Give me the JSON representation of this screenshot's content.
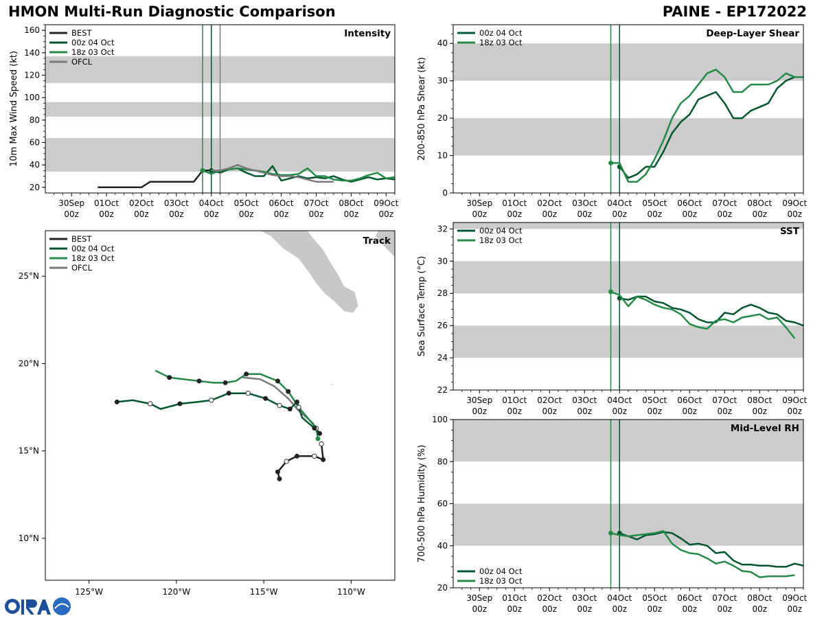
{
  "header": {
    "title": "HMON Multi-Run Diagnostic Comparison",
    "storm": "PAINE - EP172022"
  },
  "logo": {
    "text": "CIRA"
  },
  "colors": {
    "best": "#222222",
    "run00z": "#02552e",
    "run18z": "#24894a",
    "ofcl": "#7a7a7a",
    "band": "#cccccc",
    "land": "#c8c8c8"
  },
  "time_axis": {
    "ticks": [
      "30Sep\n00z",
      "01Oct\n00z",
      "02Oct\n00z",
      "03Oct\n00z",
      "04Oct\n00z",
      "05Oct\n00z",
      "06Oct\n00z",
      "07Oct\n00z",
      "08Oct\n00z",
      "09Oct\n00z"
    ],
    "tick_hours": [
      0,
      24,
      48,
      72,
      96,
      120,
      144,
      168,
      192,
      216
    ],
    "init_18z_hour": 90,
    "init_00z_hour": 96,
    "ofcl_hour": 102
  },
  "chart_data": [
    {
      "type": "line",
      "panel": "intensity",
      "title": "Intensity",
      "ylabel": "10m Max Wind Speed (kt)",
      "xlim": [
        -18,
        222
      ],
      "ylim": [
        15,
        165
      ],
      "yticks": [
        20,
        40,
        60,
        80,
        100,
        120,
        140,
        160
      ],
      "bands": [
        [
          34,
          64
        ],
        [
          83,
          96
        ],
        [
          113,
          137
        ]
      ],
      "legend": [
        "BEST",
        "00z 04 Oct",
        "18z 03 Oct",
        "OFCL"
      ],
      "series": [
        {
          "name": "BEST",
          "x": [
            18,
            24,
            30,
            36,
            42,
            48,
            54,
            60,
            66,
            72,
            78,
            84,
            90,
            96
          ],
          "y": [
            20,
            20,
            20,
            20,
            20,
            20,
            25,
            25,
            25,
            25,
            25,
            25,
            35,
            35
          ]
        },
        {
          "name": "00z 04 Oct",
          "x": [
            96,
            102,
            108,
            114,
            120,
            126,
            132,
            138,
            144,
            150,
            156,
            162,
            168,
            174,
            180,
            186,
            192,
            198,
            204,
            210,
            216,
            222
          ],
          "y": [
            35,
            33,
            36,
            37,
            33,
            30,
            30,
            39,
            26,
            28,
            30,
            28,
            29,
            28,
            30,
            27,
            25,
            27,
            29,
            27,
            28,
            27
          ]
        },
        {
          "name": "18z 03 Oct",
          "x": [
            90,
            96,
            102,
            108,
            114,
            120,
            126,
            132,
            138,
            144,
            150,
            156,
            162,
            168,
            174,
            180,
            186,
            192,
            198,
            204,
            210,
            216,
            222
          ],
          "y": [
            35,
            32,
            35,
            36,
            37,
            36,
            35,
            34,
            32,
            31,
            31,
            32,
            37,
            30,
            30,
            27,
            26,
            26,
            28,
            31,
            33,
            28,
            29
          ]
        },
        {
          "name": "OFCL",
          "x": [
            96,
            102,
            108,
            114,
            120,
            126,
            132,
            138,
            144,
            150,
            156,
            162,
            168,
            174,
            180
          ],
          "y": [
            35,
            35,
            37,
            40,
            37,
            35,
            33,
            31,
            30,
            30,
            29,
            27,
            25,
            25,
            25
          ]
        }
      ]
    },
    {
      "type": "line",
      "panel": "shear",
      "title": "Deep-Layer Shear",
      "ylabel": "200-850 hPa Shear (kt)",
      "xlim": [
        -18,
        222
      ],
      "ylim": [
        0,
        45
      ],
      "yticks": [
        0,
        10,
        20,
        30,
        40
      ],
      "bands": [
        [
          10,
          20
        ],
        [
          30,
          40
        ]
      ],
      "legend": [
        "00z 04 Oct",
        "18z 03 Oct"
      ],
      "series": [
        {
          "name": "00z 04 Oct",
          "x": [
            96,
            102,
            108,
            114,
            120,
            126,
            132,
            138,
            144,
            150,
            156,
            162,
            168,
            174,
            180,
            186,
            192,
            198,
            204,
            210,
            216,
            222
          ],
          "y": [
            7,
            4,
            5,
            7,
            7,
            11,
            16,
            19,
            21,
            25,
            26,
            27,
            24,
            20,
            20,
            22,
            23,
            24,
            28,
            30,
            31,
            31
          ]
        },
        {
          "name": "18z 03 Oct",
          "x": [
            90,
            96,
            102,
            108,
            114,
            120,
            126,
            132,
            138,
            144,
            150,
            156,
            162,
            168,
            174,
            180,
            186,
            192,
            198,
            204,
            210,
            216,
            222
          ],
          "y": [
            8,
            8,
            3,
            3,
            5,
            9,
            14,
            20,
            24,
            26,
            29,
            32,
            33,
            31,
            27,
            27,
            29,
            29,
            29,
            30,
            32,
            31,
            31
          ]
        }
      ]
    },
    {
      "type": "line",
      "panel": "sst",
      "title": "SST",
      "ylabel": "Sea Surface Temp (°C)",
      "xlim": [
        -18,
        222
      ],
      "ylim": [
        22,
        32.4
      ],
      "yticks": [
        22,
        24,
        26,
        28,
        30,
        32
      ],
      "bands": [
        [
          24,
          26
        ],
        [
          28,
          30
        ],
        [
          32,
          32.4
        ]
      ],
      "legend": [
        "00z 04 Oct",
        "18z 03 Oct"
      ],
      "series": [
        {
          "name": "00z 04 Oct",
          "x": [
            96,
            102,
            108,
            114,
            120,
            126,
            132,
            138,
            144,
            150,
            156,
            162,
            168,
            174,
            180,
            186,
            192,
            198,
            204,
            210,
            216,
            222
          ],
          "y": [
            27.7,
            27.6,
            27.8,
            27.8,
            27.5,
            27.4,
            27.1,
            27.0,
            26.8,
            26.4,
            26.2,
            26.2,
            26.8,
            26.7,
            27.1,
            27.3,
            27.1,
            26.8,
            26.7,
            26.3,
            26.2,
            26.0
          ]
        },
        {
          "name": "18z 03 Oct",
          "x": [
            90,
            96,
            102,
            108,
            114,
            120,
            126,
            132,
            138,
            144,
            150,
            156,
            162,
            168,
            174,
            180,
            186,
            192,
            198,
            204,
            210,
            216
          ],
          "y": [
            28.1,
            27.9,
            27.2,
            27.8,
            27.6,
            27.3,
            27.1,
            27.0,
            26.7,
            26.1,
            25.9,
            25.8,
            26.3,
            26.4,
            26.2,
            26.5,
            26.6,
            26.7,
            26.4,
            26.5,
            25.9,
            25.2
          ]
        }
      ]
    },
    {
      "type": "line",
      "panel": "rh",
      "title": "Mid-Level RH",
      "ylabel": "700-500 hPa Humidity (%)",
      "xlim": [
        -18,
        222
      ],
      "ylim": [
        20,
        100
      ],
      "yticks": [
        20,
        40,
        60,
        80,
        100
      ],
      "bands": [
        [
          40,
          60
        ],
        [
          80,
          100
        ]
      ],
      "legend": [
        "00z 04 Oct",
        "18z 03 Oct"
      ],
      "series": [
        {
          "name": "00z 04 Oct",
          "x": [
            96,
            102,
            108,
            114,
            120,
            126,
            132,
            138,
            144,
            150,
            156,
            162,
            168,
            174,
            180,
            186,
            192,
            198,
            204,
            210,
            216,
            222
          ],
          "y": [
            46,
            44.5,
            43,
            45,
            45.5,
            46.5,
            46,
            43.5,
            40.5,
            41,
            40,
            36.5,
            37,
            33,
            31,
            31,
            30.5,
            30.5,
            30,
            30,
            31.5,
            30.5
          ]
        },
        {
          "name": "18z 03 Oct",
          "x": [
            90,
            96,
            102,
            108,
            114,
            120,
            126,
            132,
            138,
            144,
            150,
            156,
            162,
            168,
            174,
            180,
            186,
            192,
            198,
            204,
            210,
            216
          ],
          "y": [
            46,
            45,
            44.5,
            45,
            45.5,
            46,
            47,
            41,
            38,
            36.5,
            36,
            34,
            31.5,
            32.5,
            30.5,
            28,
            27.5,
            25,
            25.5,
            25.5,
            25.5,
            26
          ]
        }
      ]
    },
    {
      "type": "scatter",
      "panel": "track",
      "title": "Track",
      "xlim": [
        -127.5,
        -107.5
      ],
      "ylim": [
        7.6,
        27.6
      ],
      "xticks": [
        -125,
        -120,
        -115,
        -110
      ],
      "xticklabels": [
        "125°W",
        "120°W",
        "115°W",
        "110°W"
      ],
      "yticks": [
        10,
        15,
        20,
        25
      ],
      "yticklabels": [
        "10°N",
        "15°N",
        "20°N",
        "25°N"
      ],
      "legend": [
        "BEST",
        "00z 04 Oct",
        "18z 03 Oct",
        "OFCL"
      ],
      "series": [
        {
          "name": "BEST",
          "lon": [
            -114.1,
            -114.2,
            -113.7,
            -113.1,
            -112.1,
            -111.6,
            -111.7
          ],
          "lat": [
            13.4,
            13.8,
            14.4,
            14.7,
            14.7,
            14.5,
            15.4
          ],
          "markers": [
            1,
            1,
            0,
            1,
            0,
            1,
            0
          ]
        },
        {
          "name": "00z 04 Oct",
          "lon": [
            -111.8,
            -112.1,
            -112.8,
            -113.1,
            -113.5,
            -114.1,
            -114.9,
            -115.9,
            -117.0,
            -118.0,
            -118.8,
            -119.8,
            -120.9,
            -121.5,
            -122.5,
            -123.4
          ],
          "lat": [
            16.0,
            16.3,
            16.9,
            17.8,
            17.4,
            17.6,
            18.0,
            18.3,
            18.3,
            17.9,
            17.8,
            17.7,
            17.4,
            17.7,
            17.9,
            17.8
          ],
          "markers": [
            1,
            1,
            0,
            1,
            1,
            0,
            1,
            0,
            1,
            0,
            0,
            1,
            0,
            0,
            0,
            1
          ]
        },
        {
          "name": "18z 03 Oct",
          "lon": [
            -111.9,
            -112.0,
            -112.5,
            -113.0,
            -113.6,
            -114.2,
            -115.2,
            -116.0,
            -116.6,
            -117.2,
            -117.9,
            -118.7,
            -119.6,
            -120.4,
            -121.2
          ],
          "lat": [
            15.7,
            16.3,
            16.9,
            17.5,
            18.4,
            19.0,
            19.4,
            19.4,
            19.0,
            18.9,
            18.9,
            19.0,
            19.1,
            19.2,
            19.6
          ],
          "markers": [
            1,
            0,
            0,
            0,
            1,
            1,
            0,
            1,
            0,
            1,
            0,
            1,
            0,
            1,
            0
          ]
        },
        {
          "name": "OFCL",
          "lon": [
            -111.8,
            -112.2,
            -113.0,
            -113.6,
            -114.4,
            -115.2,
            -116.2
          ],
          "lat": [
            16.0,
            16.6,
            17.3,
            18.0,
            18.7,
            19.1,
            19.2
          ],
          "markers": [
            0,
            0,
            0,
            0,
            0,
            0,
            0
          ]
        }
      ]
    }
  ]
}
